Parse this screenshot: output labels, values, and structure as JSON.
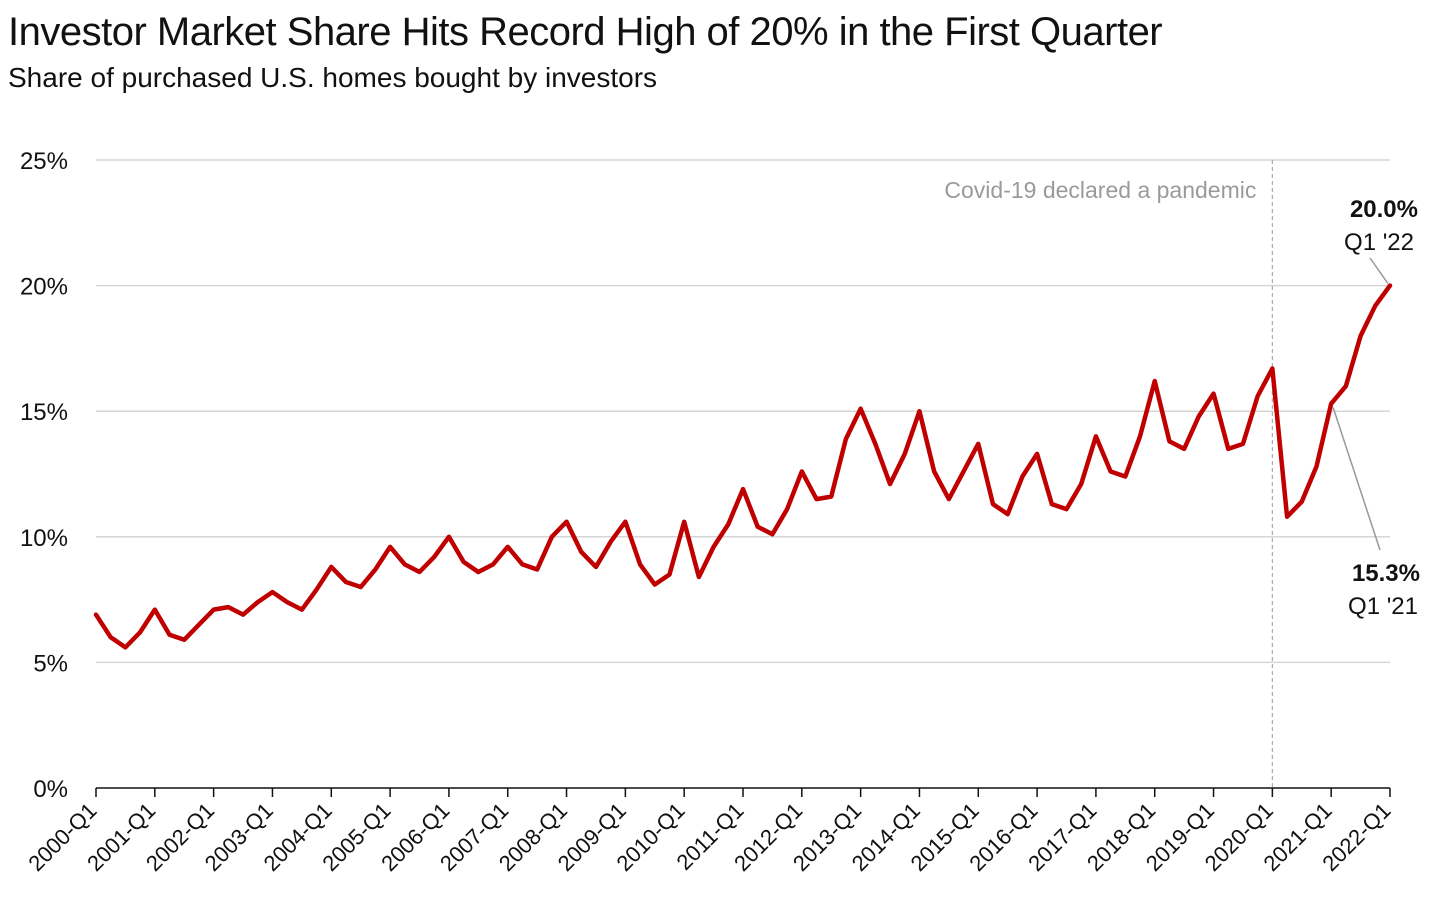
{
  "chart_data": {
    "type": "line",
    "title": "Investor Market Share Hits Record High of 20% in the First Quarter",
    "subtitle": "Share of purchased U.S. homes bought by investors",
    "xlabel": "",
    "ylabel": "",
    "ylim": [
      0,
      25
    ],
    "y_ticks": [
      "0%",
      "5%",
      "10%",
      "15%",
      "20%",
      "25%"
    ],
    "y_tick_values": [
      0,
      5,
      10,
      15,
      20,
      25
    ],
    "x_tick_labels": [
      "2000-Q1",
      "2001-Q1",
      "2002-Q1",
      "2003-Q1",
      "2004-Q1",
      "2005-Q1",
      "2006-Q1",
      "2007-Q1",
      "2008-Q1",
      "2009-Q1",
      "2010-Q1",
      "2011-Q1",
      "2012-Q1",
      "2013-Q1",
      "2014-Q1",
      "2015-Q1",
      "2016-Q1",
      "2017-Q1",
      "2018-Q1",
      "2019-Q1",
      "2020-Q1",
      "2021-Q1",
      "2022-Q1"
    ],
    "grid": true,
    "line_color": "#c00000",
    "series": [
      {
        "x_start": "2000-Q1",
        "values": [
          6.9,
          6.0,
          5.6,
          6.2,
          7.1,
          6.1,
          5.9,
          6.5,
          7.1,
          7.2,
          6.9,
          7.4,
          7.8,
          7.4,
          7.1,
          7.9,
          8.8,
          8.2,
          8.0,
          8.7,
          9.6,
          8.9,
          8.6,
          9.2,
          10.0,
          9.0,
          8.6,
          8.9,
          9.6,
          8.9,
          8.7,
          10.0,
          10.6,
          9.4,
          8.8,
          9.8,
          10.6,
          8.9,
          8.1,
          8.5,
          10.6,
          8.4,
          9.6,
          10.5,
          11.9,
          10.4,
          10.1,
          11.1,
          12.6,
          11.5,
          11.6,
          13.9,
          15.1,
          13.7,
          12.1,
          13.3,
          15.0,
          12.6,
          11.5,
          12.6,
          13.7,
          11.3,
          10.9,
          12.4,
          13.3,
          11.3,
          11.1,
          12.1,
          14.0,
          12.6,
          12.4,
          14.0,
          16.2,
          13.8,
          13.5,
          14.8,
          15.7,
          13.5,
          13.7,
          15.6,
          16.7,
          10.8,
          11.4,
          12.8,
          15.3,
          16.0,
          18.0,
          19.2,
          20.0
        ]
      }
    ],
    "annotations": {
      "pandemic": {
        "text": "Covid-19 declared a pandemic",
        "x": "2020-Q1"
      },
      "latest": {
        "value_label": "20.0%",
        "period_label": "Q1 '22",
        "x": "2022-Q1",
        "y": 20.0
      },
      "prior_year": {
        "value_label": "15.3%",
        "period_label": "Q1 '21",
        "x": "2021-Q1",
        "y": 15.3
      }
    }
  }
}
